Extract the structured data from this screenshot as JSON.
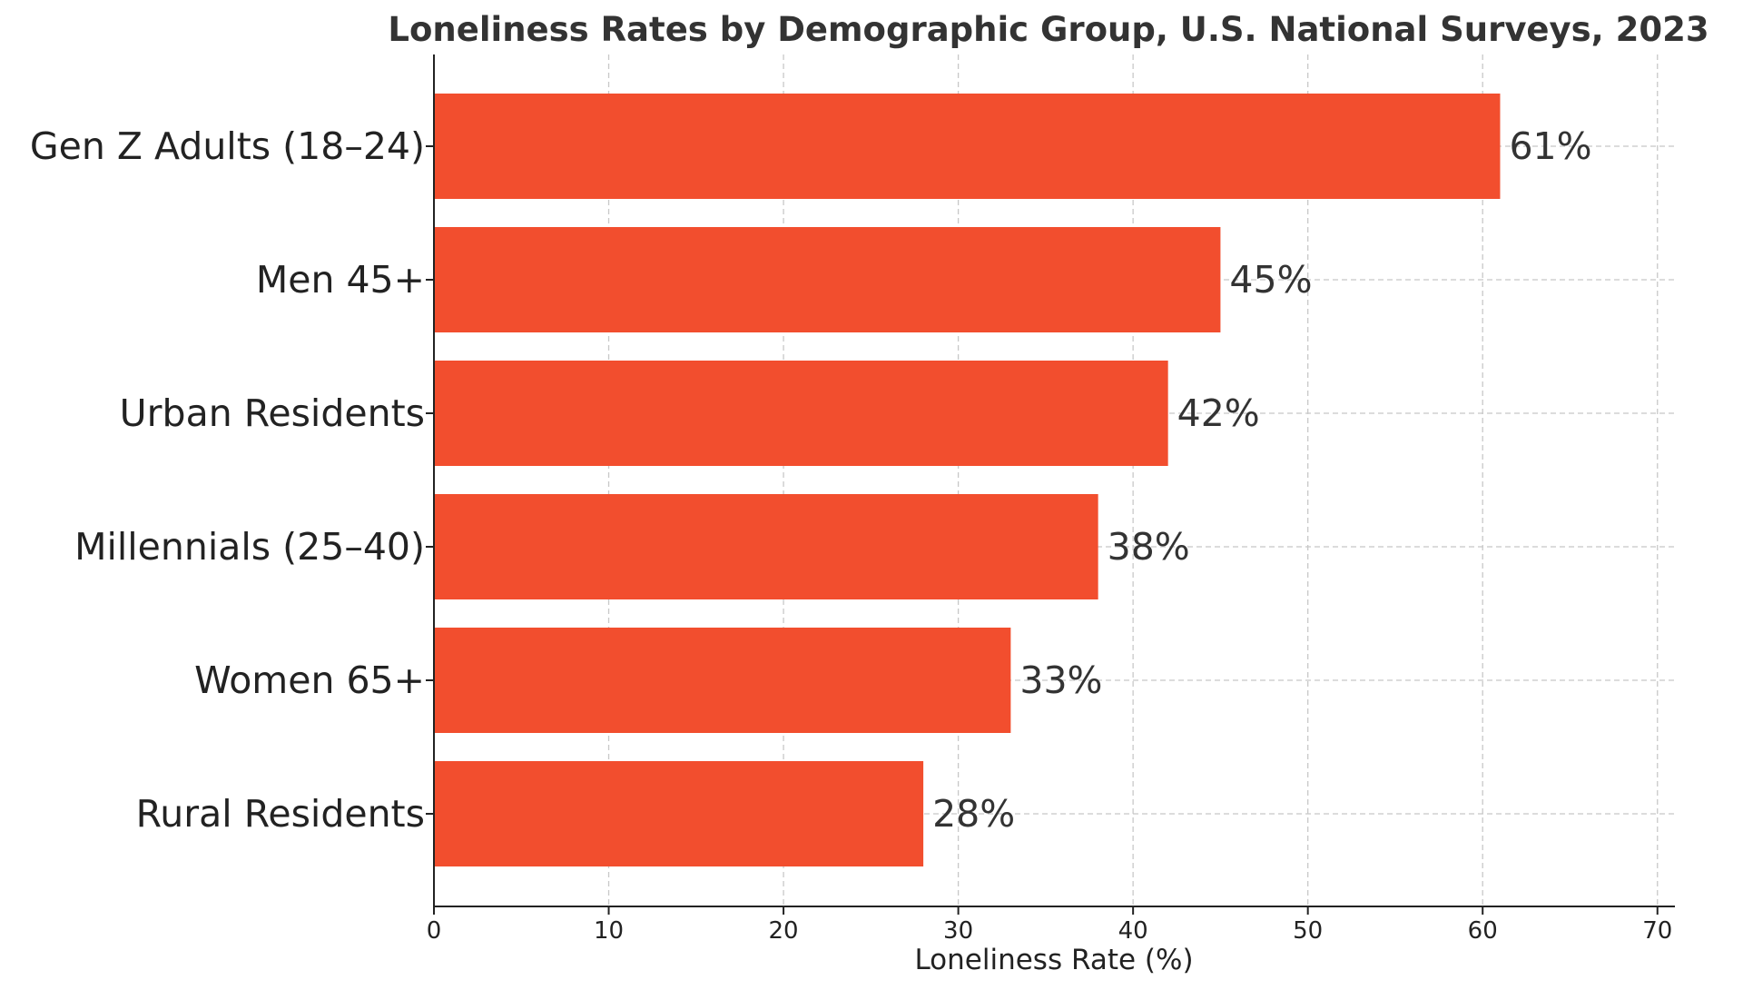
{
  "chart_data": {
    "type": "bar",
    "orientation": "horizontal",
    "title": "Loneliness Rates by Demographic Group, U.S. National Surveys, 2023",
    "xlabel": "Loneliness Rate (%)",
    "ylabel": "",
    "categories": [
      "Gen Z Adults (18–24)",
      "Men 45+",
      "Urban Residents",
      "Millennials (25–40)",
      "Women 65+",
      "Rural Residents"
    ],
    "values": [
      61,
      45,
      42,
      38,
      33,
      28
    ],
    "value_labels": [
      "61%",
      "45%",
      "42%",
      "38%",
      "33%",
      "28%"
    ],
    "xlim": [
      0,
      71
    ],
    "xticks": [
      0,
      10,
      20,
      30,
      40,
      50,
      60,
      70
    ],
    "grid": true,
    "bar_color": "#F24E2E"
  }
}
